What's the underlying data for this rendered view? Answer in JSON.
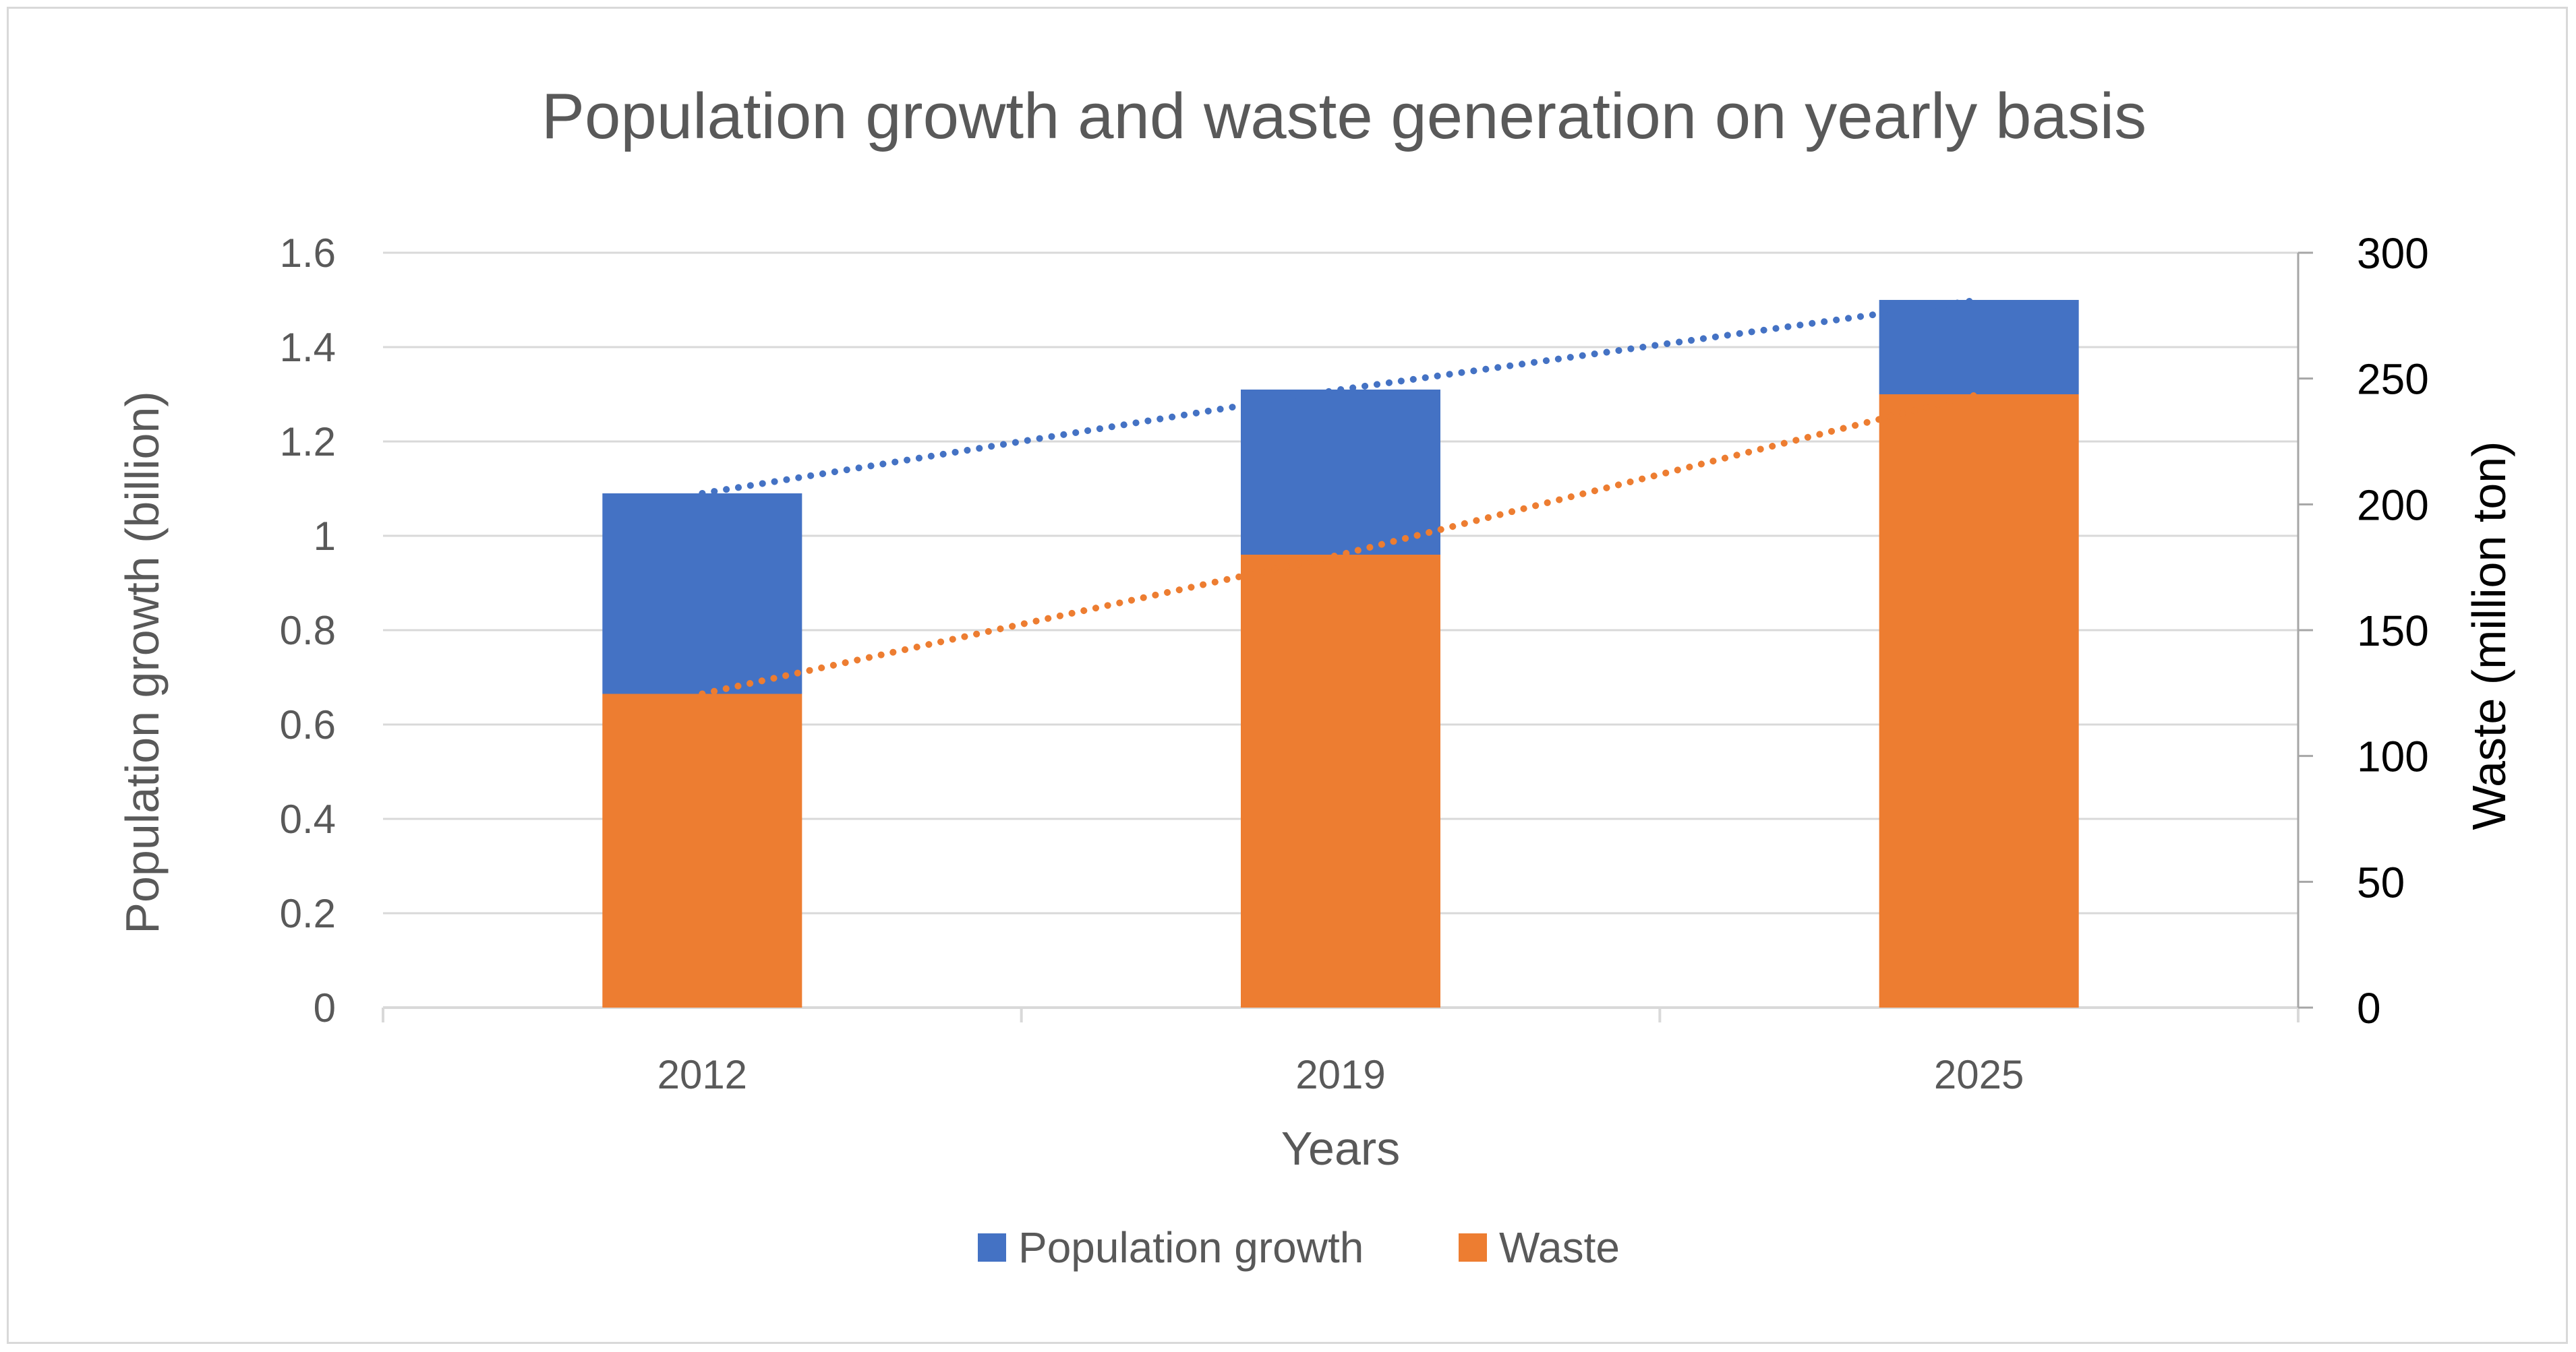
{
  "chart_data": {
    "type": "bar",
    "stacked": true,
    "title": "Population growth and waste generation on yearly basis",
    "xlabel": "Years",
    "ylabel": "Population growth (billion)",
    "y2label": "Waste (million ton)",
    "categories": [
      "2012",
      "2019",
      "2025"
    ],
    "ylim": [
      0,
      1.6
    ],
    "yticks": [
      0,
      0.2,
      0.4,
      0.6,
      0.8,
      1,
      1.2,
      1.4,
      1.6
    ],
    "ytick_labels": [
      "0",
      "0.2",
      "0.4",
      "0.6",
      "0.8",
      "1",
      "1.2",
      "1.4",
      "1.6"
    ],
    "y2lim": [
      0,
      300
    ],
    "y2ticks": [
      0,
      50,
      100,
      150,
      200,
      250,
      300
    ],
    "y2tick_labels": [
      "0",
      "50",
      "100",
      "150",
      "200",
      "250",
      "300"
    ],
    "series": [
      {
        "name": "Waste",
        "color": "#ED7D31",
        "axis": "left",
        "values": [
          0.665,
          0.96,
          1.3
        ]
      },
      {
        "name": "Population growth",
        "color": "#4472C4",
        "axis": "left",
        "values": [
          0.425,
          0.35,
          0.2
        ]
      }
    ],
    "trendlines": [
      {
        "series": "Population growth",
        "style": "dotted",
        "color": "#4472C4",
        "values": [
          1.09,
          1.31,
          1.5
        ]
      },
      {
        "series": "Waste",
        "style": "dotted",
        "color": "#ED7D31",
        "values": [
          0.665,
          0.96,
          1.3
        ]
      }
    ],
    "legend": {
      "position": "bottom",
      "entries": [
        {
          "label": "Population growth",
          "color": "#4472C4"
        },
        {
          "label": "Waste",
          "color": "#ED7D31"
        }
      ]
    },
    "grid": true
  }
}
